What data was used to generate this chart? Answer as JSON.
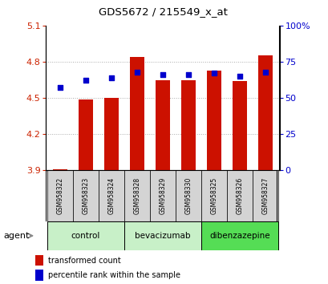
{
  "title": "GDS5672 / 215549_x_at",
  "samples": [
    "GSM958322",
    "GSM958323",
    "GSM958324",
    "GSM958328",
    "GSM958329",
    "GSM958330",
    "GSM958325",
    "GSM958326",
    "GSM958327"
  ],
  "transformed_counts": [
    3.91,
    4.49,
    4.5,
    4.84,
    4.65,
    4.65,
    4.73,
    4.64,
    4.85
  ],
  "percentile_ranks": [
    57,
    62,
    64,
    68,
    66,
    66,
    67,
    65,
    68
  ],
  "ylim_left": [
    3.9,
    5.1
  ],
  "ylim_right": [
    0,
    100
  ],
  "yticks_left": [
    3.9,
    4.2,
    4.5,
    4.8,
    5.1
  ],
  "yticks_right": [
    0,
    25,
    50,
    75,
    100
  ],
  "ytick_labels_left": [
    "3.9",
    "4.2",
    "4.5",
    "4.8",
    "5.1"
  ],
  "ytick_labels_right": [
    "0",
    "25",
    "50",
    "75",
    "100%"
  ],
  "groups": [
    {
      "label": "control",
      "indices": [
        0,
        1,
        2
      ],
      "color": "#c8f0c8"
    },
    {
      "label": "bevacizumab",
      "indices": [
        3,
        4,
        5
      ],
      "color": "#c8f0c8"
    },
    {
      "label": "dibenzazepine",
      "indices": [
        6,
        7,
        8
      ],
      "color": "#55dd55"
    }
  ],
  "bar_color": "#cc1100",
  "dot_color": "#0000cc",
  "bar_width": 0.55,
  "bar_base": 3.9,
  "agent_label": "agent",
  "legend_items": [
    {
      "label": "transformed count",
      "color": "#cc1100"
    },
    {
      "label": "percentile rank within the sample",
      "color": "#0000cc"
    }
  ],
  "grid_color": "#888888",
  "left_tick_color": "#cc2200",
  "right_tick_color": "#0000cc",
  "sample_box_color": "#d4d4d4"
}
